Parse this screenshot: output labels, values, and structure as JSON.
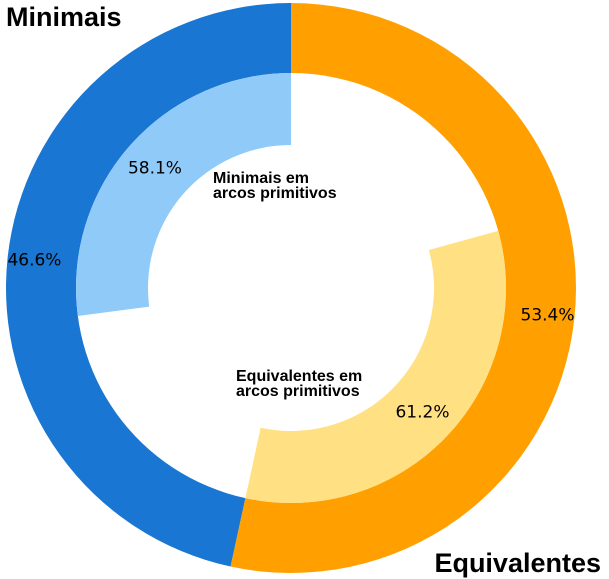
{
  "chart_data": {
    "type": "pie",
    "subtype": "nested-donut",
    "outer_ring": {
      "slices": [
        {
          "label": "Minimais",
          "value": 46.6,
          "value_label": "46.6%",
          "color": "#1976d2"
        },
        {
          "label": "Equivalentes",
          "value": 53.4,
          "value_label": "53.4%",
          "color": "#ffa000"
        }
      ]
    },
    "inner_ring": {
      "slices": [
        {
          "label": "Minimais em arcos primitivos",
          "label_lines": [
            "Minimais em",
            "arcos primitivos"
          ],
          "value": 58.1,
          "value_label": "58.1%",
          "of": "Minimais",
          "color": "#90caf9"
        },
        {
          "label": "Equivalentes em arcos primitivos",
          "label_lines": [
            "Equivalentes em",
            "arcos primitivos"
          ],
          "value": 61.2,
          "value_label": "61.2%",
          "of": "Equivalentes",
          "color": "#ffe082"
        }
      ]
    },
    "title": "",
    "legend": "none"
  }
}
